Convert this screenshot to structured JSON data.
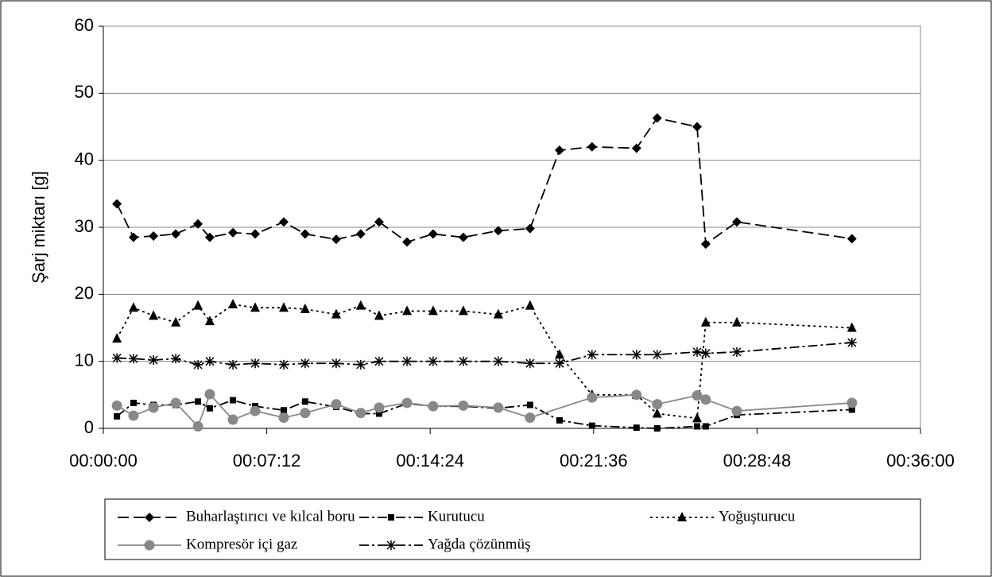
{
  "chart_data": {
    "type": "line",
    "y_label": "Şarj miktarı [g]",
    "x": [
      0.6,
      1.33,
      2.21,
      3.19,
      4.17,
      4.69,
      5.71,
      6.69,
      7.95,
      8.89,
      10.26,
      11.34,
      12.15,
      13.38,
      14.53,
      15.86,
      17.4,
      18.8,
      20.1,
      21.53,
      23.49,
      24.4,
      26.16,
      26.54,
      27.91,
      32.98
    ],
    "xlim": [
      0,
      36
    ],
    "xticks": [
      {
        "value": 0,
        "label": "00:00:00"
      },
      {
        "value": 7.2,
        "label": "00:07:12"
      },
      {
        "value": 14.4,
        "label": "00:14:24"
      },
      {
        "value": 21.6,
        "label": "00:21:36"
      },
      {
        "value": 28.8,
        "label": "00:28:48"
      },
      {
        "value": 36,
        "label": "00:36:00"
      }
    ],
    "ylim": [
      0,
      60
    ],
    "yticks": [
      0,
      10,
      20,
      30,
      40,
      50,
      60
    ],
    "grid": true,
    "series": [
      {
        "name": "Buharlaştırıcı ve kılcal boru",
        "color": "#000000",
        "marker": "diamond",
        "dash": "14 6",
        "values": [
          33.5,
          28.5,
          28.7,
          29,
          30.5,
          28.5,
          29.2,
          29,
          30.8,
          29,
          28.2,
          29,
          30.8,
          27.8,
          29,
          28.5,
          29.5,
          29.8,
          41.5,
          42,
          41.8,
          46.3,
          45,
          27.5,
          30.8,
          28.3
        ]
      },
      {
        "name": "Kurutucu",
        "color": "#000000",
        "marker": "square",
        "dash": "12 4 3 4",
        "values": [
          1.8,
          3.8,
          3.5,
          3.5,
          4,
          3,
          4.2,
          3.3,
          2.7,
          4,
          3.2,
          2.2,
          2.2,
          3.7,
          3.3,
          3.3,
          3.0,
          3.5,
          1.2,
          0.4,
          0.1,
          0,
          0.3,
          0.3,
          2,
          2.8
        ]
      },
      {
        "name": "Yoğuşturucu",
        "color": "#000000",
        "marker": "triangle",
        "dash": "3 4",
        "values": [
          13.4,
          18,
          16.8,
          15.8,
          18.3,
          16,
          18.5,
          18,
          18,
          17.8,
          17,
          18.3,
          16.8,
          17.5,
          17.5,
          17.5,
          17,
          18.3,
          11,
          5,
          5,
          2.2,
          1.5,
          15.8,
          15.8,
          15
        ]
      },
      {
        "name": "Kompresör içi gaz",
        "color": "#888888",
        "marker": "circle",
        "dash": "none",
        "x": [
          0.6,
          1.33,
          2.21,
          3.19,
          4.17,
          4.69,
          5.71,
          6.69,
          7.95,
          8.89,
          10.26,
          11.34,
          12.15,
          13.38,
          14.53,
          15.86,
          17.4,
          18.8,
          21.53,
          23.49,
          24.4,
          26.16,
          26.54,
          27.91,
          32.98
        ],
        "values": [
          3.4,
          1.9,
          3.1,
          3.8,
          0.3,
          5.1,
          1.3,
          2.6,
          1.6,
          2.3,
          3.6,
          2.3,
          3.1,
          3.8,
          3.3,
          3.4,
          3.1,
          1.6,
          4.6,
          5,
          3.6,
          4.9,
          4.3,
          2.6,
          3.8
        ]
      },
      {
        "name": "Yağda çözünmüş",
        "color": "#000000",
        "marker": "star",
        "dash": "12 4 3 4",
        "values": [
          10.5,
          10.4,
          10.2,
          10.4,
          9.5,
          10,
          9.5,
          9.7,
          9.5,
          9.7,
          9.7,
          9.5,
          10,
          10,
          10,
          10,
          10,
          9.7,
          9.7,
          11,
          11,
          11,
          11.4,
          11.2,
          11.4,
          12.8
        ]
      }
    ]
  }
}
